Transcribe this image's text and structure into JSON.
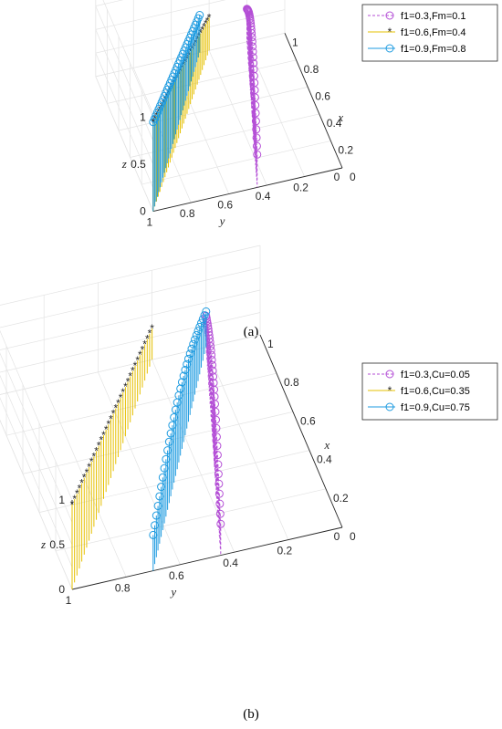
{
  "chart_data": [
    {
      "panel": "(a)",
      "type": "3d-stem",
      "xlabel": "x",
      "ylabel": "y",
      "zlabel": "z",
      "xlim": [
        0,
        1
      ],
      "ylim": [
        0,
        1
      ],
      "zlim": [
        0,
        1
      ],
      "x_ticks": [
        "0",
        "0.2",
        "0.4",
        "0.6",
        "0.8",
        "1"
      ],
      "y_ticks": [
        "0.2",
        "0.4",
        "0.6",
        "0.8",
        "1"
      ],
      "y_zero_tick": "0",
      "z_ticks": [
        "0",
        "0.5",
        "1"
      ],
      "grid": true,
      "legend_position": "top-right",
      "series": [
        {
          "name": "f1=0.3,Fm=0.1",
          "color": "#b44fd6",
          "marker": "circle",
          "linestyle": "dashed",
          "f1": 0.3,
          "param": 0.1,
          "stems": "top"
        },
        {
          "name": "f1=0.6,Fm=0.4",
          "color": "#e6c000",
          "marker": "asterisk",
          "linestyle": "solid",
          "f1": 0.6,
          "param": 0.4,
          "stems": "top"
        },
        {
          "name": "f1=0.9,Fm=0.8",
          "color": "#1e9be0",
          "marker": "circle",
          "linestyle": "solid",
          "f1": 0.9,
          "param": 0.8,
          "stems": "top"
        }
      ]
    },
    {
      "panel": "(b)",
      "type": "3d-stem",
      "xlabel": "x",
      "ylabel": "y",
      "zlabel": "z",
      "xlim": [
        0,
        1
      ],
      "ylim": [
        0,
        1
      ],
      "zlim": [
        0,
        1
      ],
      "x_ticks": [
        "0",
        "0.2",
        "0.4",
        "0.6",
        "0.8",
        "1"
      ],
      "y_ticks": [
        "0.2",
        "0.4",
        "0.6",
        "0.8",
        "1"
      ],
      "y_zero_tick": "0",
      "z_ticks": [
        "0",
        "0.5",
        "1"
      ],
      "grid": true,
      "legend_position": "top-right",
      "series": [
        {
          "name": "f1=0.3,Cu=0.05",
          "color": "#b44fd6",
          "marker": "circle",
          "linestyle": "dashed",
          "f1": 0.3,
          "param": 0.05,
          "stems": "all"
        },
        {
          "name": "f1=0.6,Cu=0.35",
          "color": "#e6c000",
          "marker": "asterisk",
          "linestyle": "solid",
          "f1": 0.6,
          "param": 0.35,
          "stems": "all"
        },
        {
          "name": "f1=0.9,Cu=0.75",
          "color": "#1e9be0",
          "marker": "circle",
          "linestyle": "solid",
          "f1": 0.9,
          "param": 0.75,
          "stems": "all"
        }
      ]
    }
  ]
}
